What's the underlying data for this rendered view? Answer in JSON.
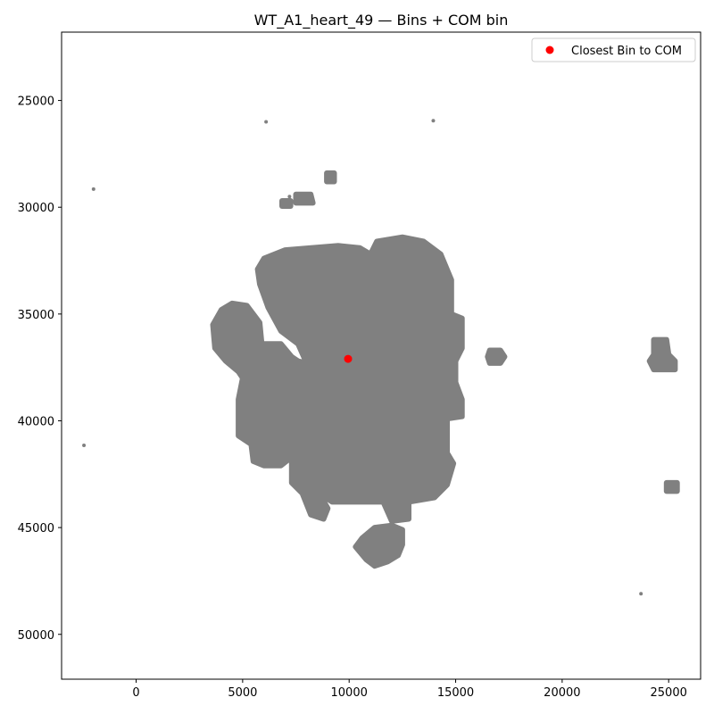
{
  "chart_data": {
    "type": "scatter",
    "title": "WT_A1_heart_49 — Bins + COM bin",
    "xlabel": "",
    "ylabel": "",
    "xlim": [
      -3500,
      26500
    ],
    "ylim": [
      52100,
      21800
    ],
    "y_inverted": true,
    "grid": false,
    "x_ticks": [
      0,
      5000,
      10000,
      15000,
      20000,
      25000
    ],
    "x_tick_labels": [
      "0",
      "5000",
      "10000",
      "15000",
      "20000",
      "25000"
    ],
    "y_ticks": [
      25000,
      30000,
      35000,
      40000,
      45000,
      50000
    ],
    "y_tick_labels": [
      "25000",
      "30000",
      "35000",
      "40000",
      "45000",
      "50000"
    ],
    "legend": {
      "placement": "top-right",
      "entries": [
        {
          "label": "Closest Bin to COM",
          "color": "#ff0000",
          "marker": "circle"
        }
      ]
    },
    "colors": {
      "bins": "#808080",
      "com": "#ff0000",
      "axes": "#000000"
    },
    "com_point": {
      "name": "Closest Bin to COM",
      "x": 9950,
      "y": 37100
    },
    "bin_regions": [
      {
        "name": "main tissue",
        "polygon": [
          [
            6000,
            32400
          ],
          [
            7000,
            32000
          ],
          [
            9500,
            31800
          ],
          [
            10500,
            31900
          ],
          [
            11000,
            32200
          ],
          [
            11300,
            31600
          ],
          [
            12500,
            31400
          ],
          [
            13500,
            31600
          ],
          [
            14300,
            32200
          ],
          [
            14800,
            33400
          ],
          [
            14800,
            35000
          ],
          [
            15300,
            35200
          ],
          [
            15300,
            36600
          ],
          [
            15000,
            37200
          ],
          [
            15000,
            38200
          ],
          [
            15300,
            39000
          ],
          [
            15300,
            39800
          ],
          [
            14600,
            39900
          ],
          [
            14600,
            41500
          ],
          [
            14900,
            42000
          ],
          [
            14600,
            43000
          ],
          [
            14000,
            43600
          ],
          [
            12800,
            43800
          ],
          [
            12800,
            44600
          ],
          [
            12000,
            44700
          ],
          [
            11600,
            43800
          ],
          [
            9200,
            43800
          ],
          [
            8600,
            43400
          ],
          [
            9000,
            44100
          ],
          [
            8800,
            44600
          ],
          [
            8200,
            44400
          ],
          [
            7800,
            43400
          ],
          [
            7300,
            42900
          ],
          [
            7300,
            41700
          ],
          [
            6800,
            42100
          ],
          [
            6000,
            42100
          ],
          [
            5500,
            41900
          ],
          [
            5400,
            41100
          ],
          [
            4800,
            40700
          ],
          [
            4800,
            39000
          ],
          [
            5000,
            38000
          ],
          [
            4800,
            37700
          ],
          [
            4200,
            37200
          ],
          [
            3700,
            36600
          ],
          [
            3600,
            35500
          ],
          [
            4000,
            34800
          ],
          [
            4500,
            34500
          ],
          [
            5200,
            34600
          ],
          [
            5800,
            35400
          ],
          [
            5900,
            36400
          ],
          [
            6800,
            36400
          ],
          [
            7300,
            37000
          ],
          [
            7600,
            37200
          ],
          [
            8000,
            37300
          ],
          [
            7600,
            36400
          ],
          [
            6800,
            35800
          ],
          [
            6200,
            34700
          ],
          [
            5800,
            33600
          ],
          [
            5700,
            32900
          ]
        ]
      },
      {
        "name": "lower lobe",
        "polygon": [
          [
            10600,
            45500
          ],
          [
            11200,
            45000
          ],
          [
            12000,
            44900
          ],
          [
            12500,
            45100
          ],
          [
            12500,
            45800
          ],
          [
            12300,
            46300
          ],
          [
            11800,
            46600
          ],
          [
            11200,
            46800
          ],
          [
            10800,
            46500
          ],
          [
            10300,
            45900
          ]
        ]
      },
      {
        "name": "blob 16900 37000",
        "polygon": [
          [
            16600,
            36700
          ],
          [
            17100,
            36700
          ],
          [
            17300,
            37000
          ],
          [
            17100,
            37300
          ],
          [
            16600,
            37300
          ],
          [
            16500,
            37000
          ]
        ]
      },
      {
        "name": "blob 24700 37200",
        "polygon": [
          [
            24300,
            36200
          ],
          [
            24900,
            36200
          ],
          [
            25000,
            36900
          ],
          [
            25300,
            37200
          ],
          [
            25300,
            37600
          ],
          [
            24300,
            37600
          ],
          [
            24100,
            37200
          ],
          [
            24300,
            36900
          ]
        ]
      },
      {
        "name": "blob 25100 43100",
        "polygon": [
          [
            24900,
            42900
          ],
          [
            25400,
            42900
          ],
          [
            25400,
            43300
          ],
          [
            24900,
            43300
          ]
        ]
      },
      {
        "name": "blob 7800 29600",
        "polygon": [
          [
            7500,
            29400
          ],
          [
            8200,
            29400
          ],
          [
            8300,
            29800
          ],
          [
            7500,
            29800
          ]
        ]
      },
      {
        "name": "blob 7000 29800",
        "polygon": [
          [
            6850,
            29700
          ],
          [
            7250,
            29700
          ],
          [
            7250,
            29950
          ],
          [
            6850,
            29950
          ]
        ]
      },
      {
        "name": "blob 9100 28600",
        "polygon": [
          [
            8950,
            28400
          ],
          [
            9300,
            28400
          ],
          [
            9300,
            28800
          ],
          [
            8950,
            28800
          ]
        ]
      }
    ],
    "bin_specks": [
      {
        "x": 6100,
        "y": 26000
      },
      {
        "x": 13950,
        "y": 25950
      },
      {
        "x": -2000,
        "y": 29150
      },
      {
        "x": -2450,
        "y": 41150
      },
      {
        "x": 23700,
        "y": 48100
      },
      {
        "x": 7200,
        "y": 29500
      }
    ]
  }
}
